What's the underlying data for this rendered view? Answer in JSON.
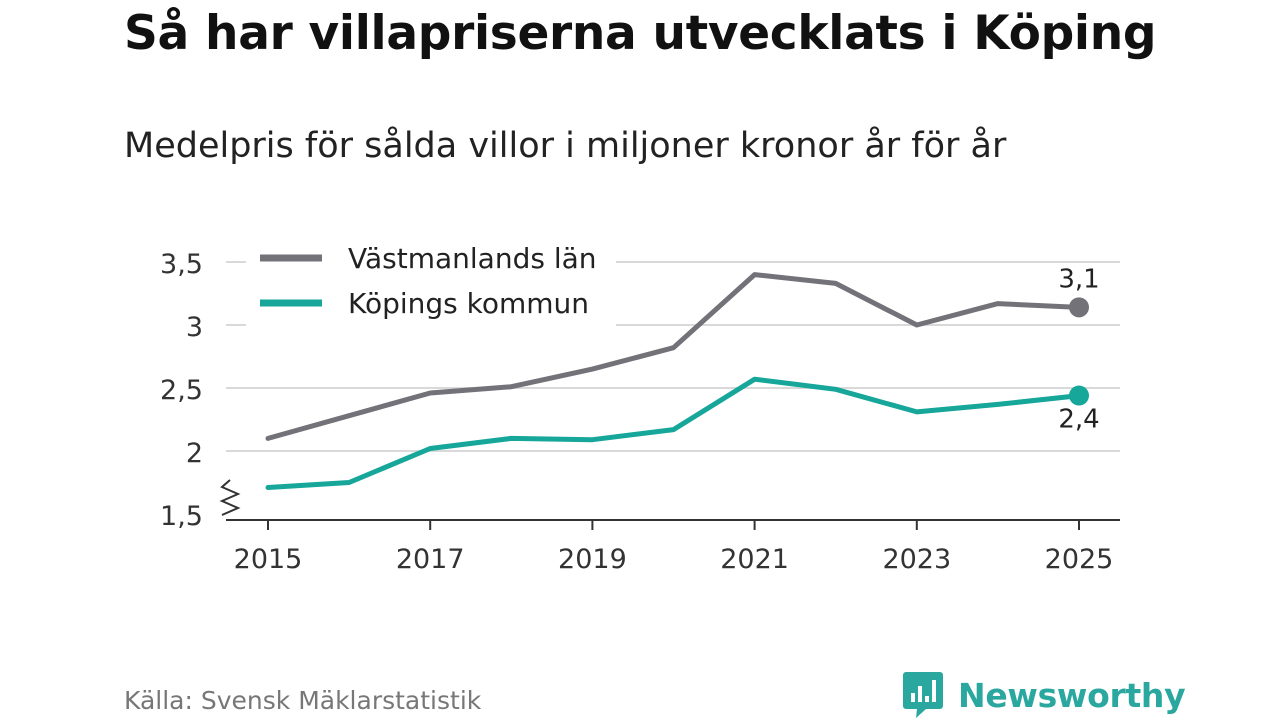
{
  "title": "Så har villapriserna utvecklats i Köping",
  "subtitle": "Medelpris för sålda villor i miljoner kronor år för år",
  "source": "Källa: Svensk Mäklarstatistik",
  "brand": {
    "name": "Newsworthy",
    "color": "#2aa79e",
    "icon": "newsworthy-bar-chart-icon"
  },
  "chart_data": {
    "type": "line",
    "title": "Så har villapriserna utvecklats i Köping",
    "subtitle": "Medelpris för sålda villor i miljoner kronor år för år",
    "xlabel": "",
    "ylabel": "",
    "x": [
      2015,
      2016,
      2017,
      2018,
      2019,
      2020,
      2021,
      2022,
      2023,
      2024,
      2025
    ],
    "xticks": [
      2015,
      2017,
      2019,
      2021,
      2023,
      2025
    ],
    "yticks": [
      1.5,
      2,
      2.5,
      3,
      3.5
    ],
    "ytick_labels": [
      "1,5",
      "2",
      "2,5",
      "3",
      "3,5"
    ],
    "ylim": [
      1.5,
      3.5
    ],
    "y_axis_break": true,
    "grid": true,
    "legend_position": "top-left",
    "series": [
      {
        "name": "Västmanlands län",
        "color": "#737279",
        "values": [
          2.1,
          2.28,
          2.46,
          2.51,
          2.65,
          2.82,
          3.4,
          3.33,
          3.0,
          3.17,
          3.14
        ],
        "end_label": "3,1"
      },
      {
        "name": "Köpings kommun",
        "color": "#16a69a",
        "values": [
          1.71,
          1.75,
          2.02,
          2.1,
          2.09,
          2.17,
          2.57,
          2.49,
          2.31,
          2.37,
          2.44
        ],
        "end_label": "2,4"
      }
    ]
  }
}
